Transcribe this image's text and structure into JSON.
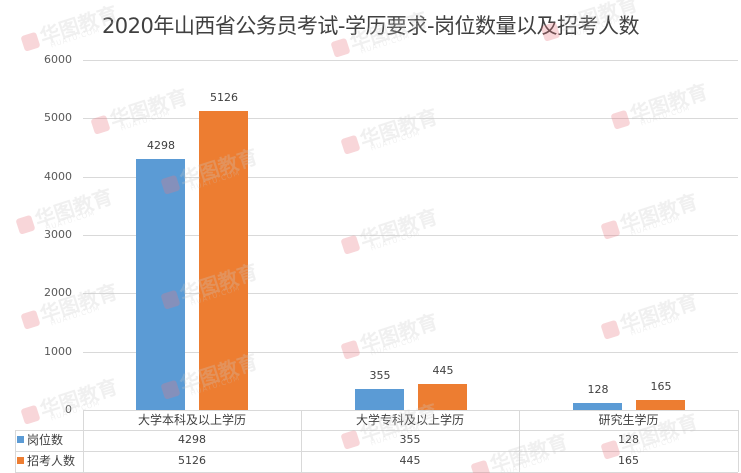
{
  "title": "2020年山西省公务员考试-学历要求-岗位数量以及招考人数",
  "colors": {
    "岗位数": "#5b9bd5",
    "招考人数": "#ed7d31",
    "grid": "#d9d9d9"
  },
  "watermark": {
    "text": "华图教育",
    "sub": "HUATU.COM"
  },
  "y_axis": {
    "ticks": [
      "6000",
      "5000",
      "4000",
      "3000",
      "2000",
      "1000",
      "0"
    ]
  },
  "table": {
    "categories": [
      "大学本科及以上学历",
      "大学专科及以上学历",
      "研究生学历"
    ],
    "rows": [
      {
        "label": "岗位数",
        "values": [
          "4298",
          "355",
          "128"
        ]
      },
      {
        "label": "招考人数",
        "values": [
          "5126",
          "445",
          "165"
        ]
      }
    ]
  },
  "chart_data": {
    "type": "bar",
    "title": "2020年山西省公务员考试-学历要求-岗位数量以及招考人数",
    "categories": [
      "大学本科及以上学历",
      "大学专科及以上学历",
      "研究生学历"
    ],
    "series": [
      {
        "name": "岗位数",
        "values": [
          4298,
          355,
          128
        ],
        "color": "#5b9bd5"
      },
      {
        "name": "招考人数",
        "values": [
          5126,
          445,
          165
        ],
        "color": "#ed7d31"
      }
    ],
    "xlabel": "",
    "ylabel": "",
    "ylim": [
      0,
      6000
    ],
    "yticks": [
      0,
      1000,
      2000,
      3000,
      4000,
      5000,
      6000
    ],
    "grid": true,
    "data_labels": true,
    "legend_position": "data-table-bottom"
  }
}
